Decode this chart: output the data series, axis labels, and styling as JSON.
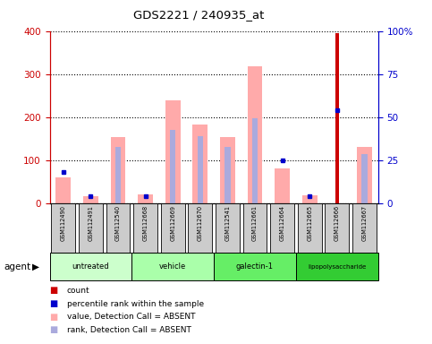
{
  "title": "GDS2221 / 240935_at",
  "samples": [
    "GSM112490",
    "GSM112491",
    "GSM112540",
    "GSM112668",
    "GSM112669",
    "GSM112670",
    "GSM112541",
    "GSM112661",
    "GSM112664",
    "GSM112665",
    "GSM112666",
    "GSM112667"
  ],
  "pink_bars": [
    60,
    15,
    153,
    20,
    238,
    182,
    153,
    318,
    80,
    18,
    0,
    130
  ],
  "light_blue_bars": [
    0,
    0,
    130,
    0,
    170,
    155,
    130,
    196,
    0,
    0,
    0,
    113
  ],
  "red_bars": [
    0,
    0,
    0,
    0,
    0,
    0,
    0,
    0,
    0,
    0,
    395,
    0
  ],
  "blue_dots_pct": [
    18,
    4,
    0,
    4,
    0,
    0,
    0,
    0,
    25,
    4,
    54,
    0
  ],
  "blue_dots_show": [
    true,
    true,
    false,
    true,
    false,
    false,
    false,
    false,
    true,
    true,
    true,
    false
  ],
  "group_starts": [
    0,
    3,
    6,
    9
  ],
  "group_ends": [
    3,
    6,
    9,
    12
  ],
  "group_colors": [
    "#ccffcc",
    "#aaffaa",
    "#66ee66",
    "#33cc33"
  ],
  "group_names": [
    "untreated",
    "vehicle",
    "galectin-1",
    "lipopolysaccharide"
  ],
  "ylim_left": [
    0,
    400
  ],
  "ylim_right": [
    0,
    100
  ],
  "yticks_left": [
    0,
    100,
    200,
    300,
    400
  ],
  "yticks_right": [
    0,
    25,
    50,
    75,
    100
  ],
  "ytick_labels_right": [
    "0",
    "25",
    "50",
    "75",
    "100%"
  ],
  "left_axis_color": "#cc0000",
  "right_axis_color": "#0000cc",
  "pink_color": "#ffaaaa",
  "light_blue_color": "#aaaadd",
  "red_color": "#cc0000",
  "blue_dot_color": "#0000cc",
  "label_box_color": "#cccccc",
  "legend_items": [
    {
      "color": "#cc0000",
      "label": "count"
    },
    {
      "color": "#0000cc",
      "label": "percentile rank within the sample"
    },
    {
      "color": "#ffaaaa",
      "label": "value, Detection Call = ABSENT"
    },
    {
      "color": "#aaaadd",
      "label": "rank, Detection Call = ABSENT"
    }
  ]
}
